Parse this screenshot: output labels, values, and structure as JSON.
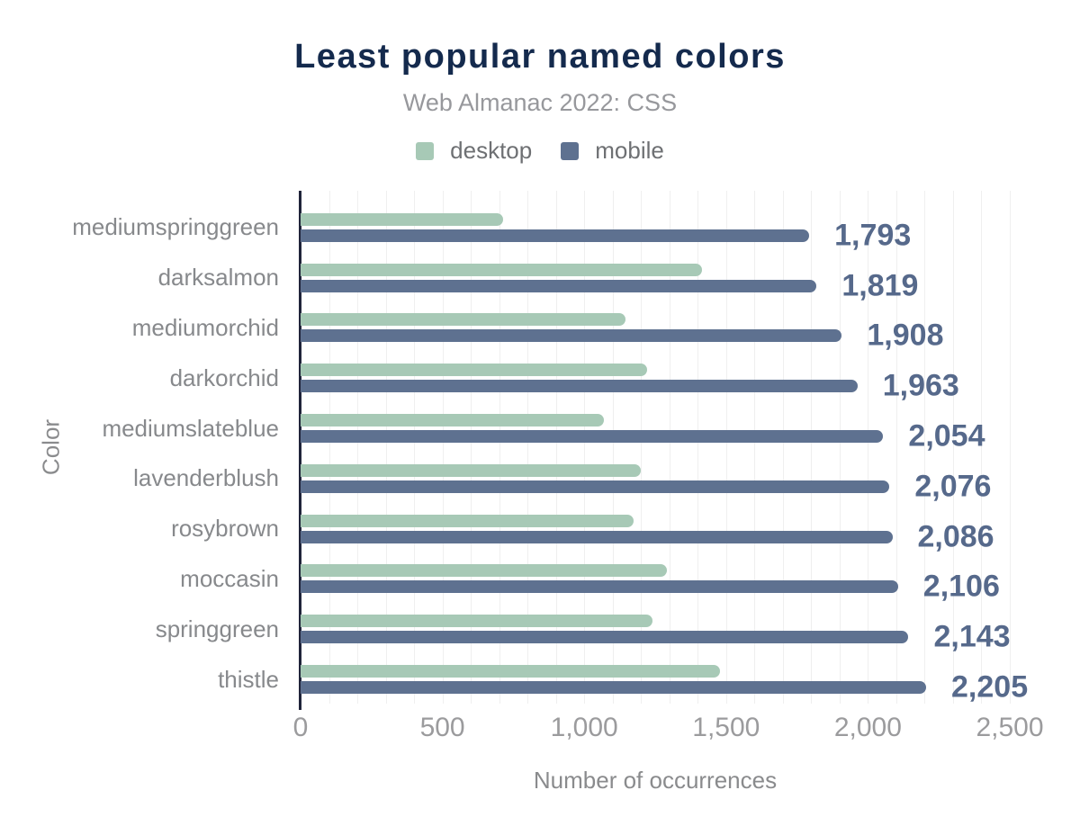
{
  "header": {
    "title": "Least popular named colors",
    "subtitle": "Web Almanac 2022: CSS"
  },
  "axes": {
    "xlabel": "Number of occurrences",
    "ylabel": "Color"
  },
  "colors": {
    "desktop_bar": "#a7c9b6",
    "mobile_bar": "#5e7190",
    "value_label": "#56698b",
    "title": "#142a4d",
    "subtitle": "#97989c",
    "gridline": "#efefef",
    "axis_line": "#20243a"
  },
  "chart_data": {
    "type": "bar",
    "orientation": "horizontal",
    "title": "Least popular named colors",
    "subtitle": "Web Almanac 2022: CSS",
    "xlabel": "Number of occurrences",
    "ylabel": "Color",
    "xlim": [
      0,
      2500
    ],
    "xticks": [
      0,
      500,
      1000,
      1500,
      2000,
      2500
    ],
    "xtick_labels": [
      "0",
      "500",
      "1,000",
      "1,500",
      "2,000",
      "2,500"
    ],
    "grid": "vertical minor gridlines every 100, no horizontal gridlines",
    "legend_position": "top-center",
    "categories": [
      "mediumspringgreen",
      "darksalmon",
      "mediumorchid",
      "darkorchid",
      "mediumslateblue",
      "lavenderblush",
      "rosybrown",
      "moccasin",
      "springgreen",
      "thistle"
    ],
    "series": [
      {
        "name": "desktop",
        "color": "#a7c9b6",
        "values_estimated_from_pixels": true,
        "values": [
          715,
          1415,
          1145,
          1220,
          1070,
          1200,
          1175,
          1290,
          1240,
          1480
        ]
      },
      {
        "name": "mobile",
        "color": "#5e7190",
        "values": [
          1793,
          1819,
          1908,
          1963,
          2054,
          2076,
          2086,
          2106,
          2143,
          2205
        ],
        "value_labels": [
          "1,793",
          "1,819",
          "1,908",
          "1,963",
          "2,054",
          "2,076",
          "2,086",
          "2,106",
          "2,143",
          "2,205"
        ]
      }
    ]
  }
}
